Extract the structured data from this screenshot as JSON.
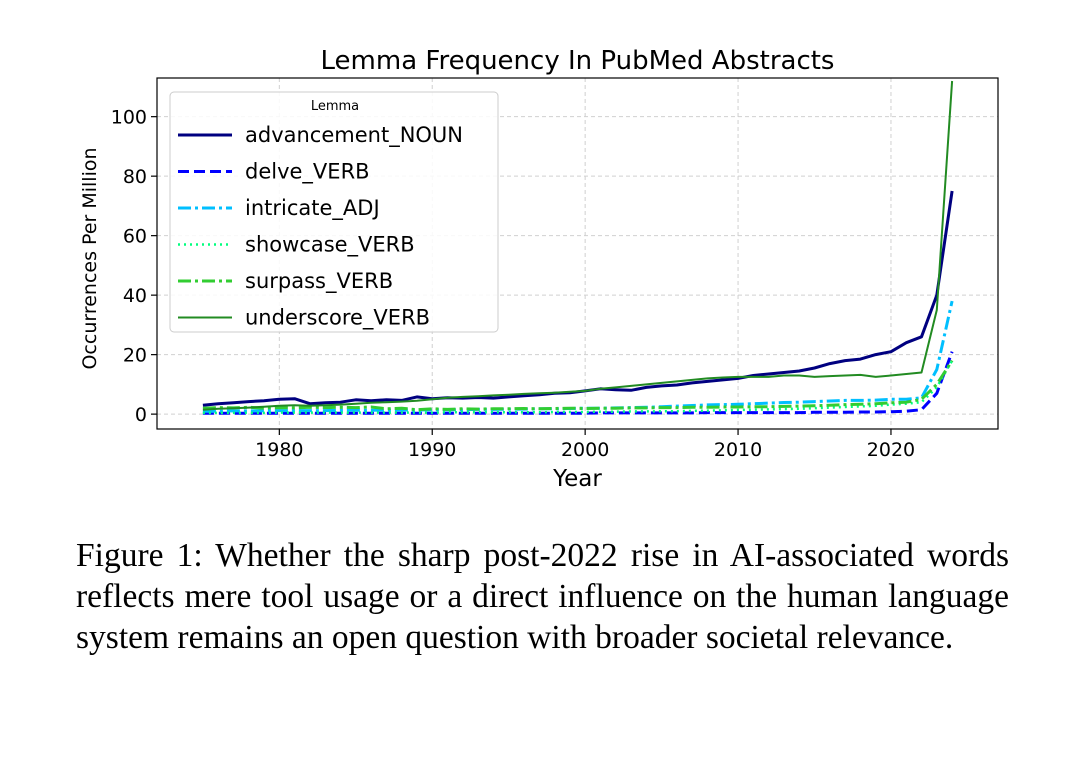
{
  "chart_data": {
    "type": "line",
    "title": "Lemma Frequency In PubMed Abstracts",
    "xlabel": "Year",
    "ylabel": "Occurrences Per Million",
    "xlim": [
      1972,
      2027
    ],
    "ylim": [
      -5,
      113
    ],
    "xticks": [
      1980,
      1990,
      2000,
      2010,
      2020
    ],
    "yticks": [
      0,
      20,
      40,
      60,
      80,
      100
    ],
    "grid": true,
    "legend_title": "Lemma",
    "legend_position": "top-left",
    "x": [
      1975,
      1976,
      1977,
      1978,
      1979,
      1980,
      1981,
      1982,
      1983,
      1984,
      1985,
      1986,
      1987,
      1988,
      1989,
      1990,
      1991,
      1992,
      1993,
      1994,
      1995,
      1996,
      1997,
      1998,
      1999,
      2000,
      2001,
      2002,
      2003,
      2004,
      2005,
      2006,
      2007,
      2008,
      2009,
      2010,
      2011,
      2012,
      2013,
      2014,
      2015,
      2016,
      2017,
      2018,
      2019,
      2020,
      2021,
      2022,
      2023,
      2024
    ],
    "series": [
      {
        "name": "advancement_NOUN",
        "color": "#000080",
        "dash": "solid",
        "width": 3,
        "values": [
          3,
          3.5,
          3.8,
          4.2,
          4.5,
          5,
          5.2,
          3.5,
          3.8,
          4,
          4.8,
          4.5,
          4.8,
          4.6,
          5.8,
          5.2,
          5.5,
          5.4,
          5.6,
          5.4,
          5.8,
          6.2,
          6.5,
          7,
          7.2,
          7.8,
          8.5,
          8.2,
          8,
          9,
          9.5,
          9.8,
          10.5,
          11,
          11.5,
          12,
          13,
          13.5,
          14,
          14.5,
          15.5,
          17,
          18,
          18.5,
          20,
          21,
          24,
          26,
          40,
          75
        ]
      },
      {
        "name": "delve_VERB",
        "color": "#0000ff",
        "dash": "dashed",
        "width": 3,
        "values": [
          0.3,
          0.3,
          0.3,
          0.3,
          0.3,
          0.3,
          0.3,
          0.3,
          0.3,
          0.3,
          0.3,
          0.3,
          0.3,
          0.3,
          0.3,
          0.3,
          0.3,
          0.3,
          0.3,
          0.3,
          0.3,
          0.3,
          0.3,
          0.3,
          0.3,
          0.3,
          0.4,
          0.4,
          0.4,
          0.4,
          0.4,
          0.4,
          0.4,
          0.5,
          0.5,
          0.5,
          0.5,
          0.5,
          0.5,
          0.5,
          0.6,
          0.6,
          0.6,
          0.7,
          0.7,
          0.8,
          1,
          1.5,
          7,
          21
        ]
      },
      {
        "name": "intricate_ADJ",
        "color": "#00bfff",
        "dash": "dashdot",
        "width": 3,
        "values": [
          1,
          1,
          1.1,
          1.1,
          1.1,
          1.2,
          1.2,
          1.2,
          1.2,
          1.3,
          1.3,
          1.3,
          1.4,
          1.4,
          1.4,
          1.5,
          1.5,
          1.5,
          1.6,
          1.6,
          1.7,
          1.7,
          1.8,
          1.8,
          1.9,
          2,
          2,
          2.1,
          2.2,
          2.3,
          2.5,
          2.7,
          2.9,
          3.1,
          3.2,
          3.3,
          3.5,
          3.7,
          3.9,
          4,
          4.2,
          4.4,
          4.6,
          4.6,
          4.7,
          5,
          5,
          5.5,
          15,
          38
        ]
      },
      {
        "name": "showcase_VERB",
        "color": "#00ff7f",
        "dash": "dotted",
        "width": 2.5,
        "values": [
          0.4,
          0.4,
          0.4,
          0.4,
          0.4,
          0.5,
          0.5,
          0.5,
          0.5,
          0.5,
          0.5,
          0.5,
          0.5,
          0.5,
          0.5,
          0.5,
          0.6,
          0.6,
          0.6,
          0.6,
          0.6,
          0.6,
          0.6,
          0.7,
          0.7,
          0.7,
          0.8,
          0.8,
          0.9,
          0.9,
          1,
          1,
          1.1,
          1.2,
          1.3,
          1.4,
          1.5,
          1.6,
          1.7,
          1.8,
          2,
          2.2,
          2.4,
          2.6,
          2.8,
          3.2,
          3.5,
          4,
          9,
          18
        ]
      },
      {
        "name": "surpass_VERB",
        "color": "#32cd32",
        "dash": "dashdot",
        "width": 3,
        "values": [
          2,
          2.2,
          2.1,
          2.3,
          2,
          2.2,
          2.1,
          2.3,
          2.2,
          2.3,
          2.2,
          2.4,
          1.8,
          2,
          1.5,
          1.8,
          1.6,
          1.8,
          1.7,
          1.8,
          1.8,
          1.9,
          1.8,
          1.9,
          2,
          1.9,
          2,
          2,
          2.1,
          2.1,
          2.2,
          2.2,
          2.3,
          2.3,
          2.4,
          2.4,
          2.5,
          2.5,
          2.6,
          2.7,
          2.8,
          3,
          3.2,
          3.3,
          3.5,
          3.8,
          4,
          5,
          10,
          18
        ]
      },
      {
        "name": "underscore_VERB",
        "color": "#228b22",
        "dash": "solid",
        "width": 2,
        "values": [
          1.5,
          1.8,
          2,
          2.2,
          2.5,
          2.8,
          3,
          2.8,
          3,
          3.2,
          3.5,
          3.8,
          4,
          4.2,
          4.5,
          5,
          5.5,
          5.8,
          6,
          6.3,
          6.5,
          6.8,
          7,
          7.2,
          7.5,
          7.8,
          8.5,
          9,
          9.5,
          10,
          10.5,
          11,
          11.5,
          12,
          12.3,
          12.5,
          12.5,
          12.5,
          13,
          13,
          12.5,
          12.8,
          13,
          13.2,
          12.5,
          13,
          13.5,
          14,
          35,
          112
        ]
      }
    ]
  },
  "caption": "Figure 1: Whether the sharp post-2022 rise in AI-associated words reflects mere tool usage or a direct influence on the human language system remains an open question with broader societal relevance."
}
